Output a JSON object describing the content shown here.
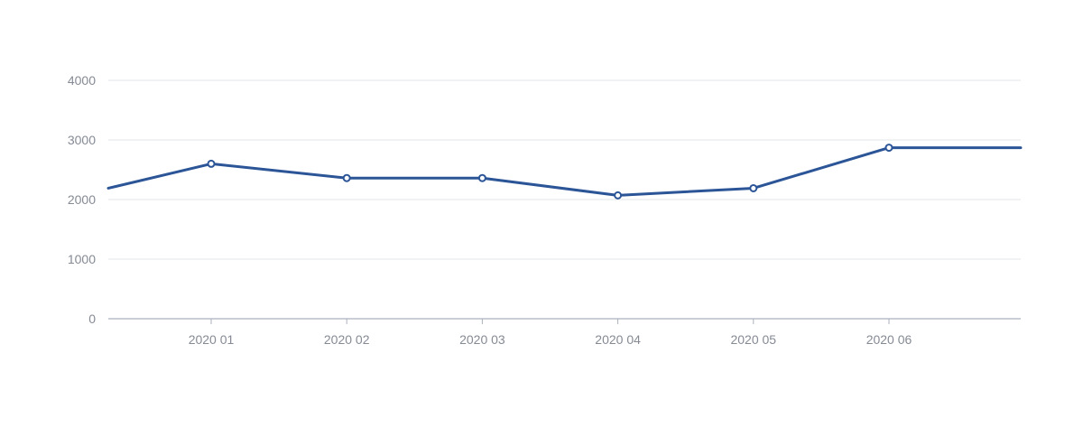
{
  "chart_data": {
    "type": "line",
    "title": "",
    "xlabel": "",
    "ylabel": "",
    "categories": [
      "2020 01",
      "2020 02",
      "2020 03",
      "2020 04",
      "2020 05",
      "2020 06"
    ],
    "series": [
      {
        "values": [
          2600,
          2360,
          2360,
          2070,
          2190,
          2870
        ],
        "color": "#2b5597",
        "left_edge_value": 2190,
        "right_edge_value": 2870
      }
    ],
    "ylim": [
      0,
      4000
    ],
    "yticks": [
      0,
      1000,
      2000,
      3000,
      4000
    ],
    "grid": true,
    "legend": "none"
  }
}
